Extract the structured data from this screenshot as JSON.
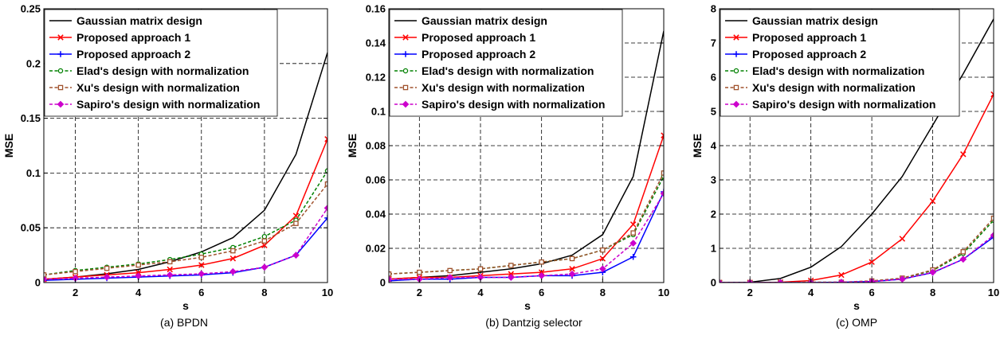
{
  "legend_entries": [
    "Gaussian matrix design",
    "Proposed approach 1",
    "Proposed approach 2",
    "Elad's design with normalization",
    "Xu's design with normalization",
    "Sapiro's design with normalization"
  ],
  "series_styles": [
    {
      "color": "#000000",
      "marker": "none",
      "dash": "solid"
    },
    {
      "color": "#ff0000",
      "marker": "x",
      "dash": "solid"
    },
    {
      "color": "#0000ff",
      "marker": "plus",
      "dash": "solid"
    },
    {
      "color": "#008000",
      "marker": "circle",
      "dash": "dashed"
    },
    {
      "color": "#a0522d",
      "marker": "square",
      "dash": "dashed"
    },
    {
      "color": "#cc00cc",
      "marker": "diamond",
      "dash": "dashed"
    }
  ],
  "chart_data": [
    {
      "type": "line",
      "caption": "(a) BPDN",
      "xlabel": "s",
      "ylabel": "MSE",
      "xlim": [
        1,
        10
      ],
      "ylim": [
        0,
        0.25
      ],
      "xticks": [
        2,
        4,
        6,
        8,
        10
      ],
      "yticks": [
        0,
        0.05,
        0.1,
        0.15,
        0.2,
        0.25
      ],
      "ytick_labels": [
        "0",
        "0.05",
        "0.1",
        "0.15",
        "0.2",
        "0.25"
      ],
      "grid": true,
      "legend_position": "top-left",
      "x": [
        1,
        2,
        3,
        4,
        5,
        6,
        7,
        8,
        9,
        10
      ],
      "series": [
        {
          "name": "Gaussian matrix design",
          "values": [
            0.003,
            0.005,
            0.008,
            0.012,
            0.019,
            0.028,
            0.041,
            0.066,
            0.117,
            0.21
          ]
        },
        {
          "name": "Proposed approach 1",
          "values": [
            0.003,
            0.005,
            0.007,
            0.009,
            0.012,
            0.016,
            0.022,
            0.034,
            0.061,
            0.131
          ]
        },
        {
          "name": "Proposed approach 2",
          "values": [
            0.002,
            0.003,
            0.004,
            0.005,
            0.006,
            0.007,
            0.009,
            0.014,
            0.025,
            0.059
          ]
        },
        {
          "name": "Elad's design with normalization",
          "values": [
            0.007,
            0.011,
            0.014,
            0.017,
            0.021,
            0.026,
            0.032,
            0.042,
            0.057,
            0.102
          ]
        },
        {
          "name": "Xu's design with normalization",
          "values": [
            0.007,
            0.01,
            0.013,
            0.016,
            0.019,
            0.023,
            0.029,
            0.038,
            0.054,
            0.09
          ]
        },
        {
          "name": "Sapiro's design with normalization",
          "values": [
            0.003,
            0.004,
            0.005,
            0.006,
            0.007,
            0.008,
            0.01,
            0.014,
            0.025,
            0.068
          ]
        }
      ]
    },
    {
      "type": "line",
      "caption": "(b) Dantzig selector",
      "xlabel": "s",
      "ylabel": "MSE",
      "xlim": [
        1,
        10
      ],
      "ylim": [
        0,
        0.16
      ],
      "xticks": [
        2,
        4,
        6,
        8,
        10
      ],
      "yticks": [
        0,
        0.02,
        0.04,
        0.06,
        0.08,
        0.1,
        0.12,
        0.14,
        0.16
      ],
      "ytick_labels": [
        "0",
        "0.02",
        "0.04",
        "0.06",
        "0.08",
        "0.1",
        "0.12",
        "0.14",
        "0.16"
      ],
      "grid": true,
      "legend_position": "top-left",
      "x": [
        1,
        2,
        3,
        4,
        5,
        6,
        7,
        8,
        9,
        10
      ],
      "series": [
        {
          "name": "Gaussian matrix design",
          "values": [
            0.002,
            0.003,
            0.004,
            0.006,
            0.008,
            0.011,
            0.016,
            0.028,
            0.062,
            0.147
          ]
        },
        {
          "name": "Proposed approach 1",
          "values": [
            0.002,
            0.003,
            0.003,
            0.004,
            0.005,
            0.006,
            0.008,
            0.014,
            0.034,
            0.086
          ]
        },
        {
          "name": "Proposed approach 2",
          "values": [
            0.001,
            0.002,
            0.002,
            0.003,
            0.003,
            0.004,
            0.004,
            0.006,
            0.015,
            0.053
          ]
        },
        {
          "name": "Elad's design with normalization",
          "values": [
            0.005,
            0.006,
            0.007,
            0.008,
            0.01,
            0.012,
            0.014,
            0.019,
            0.028,
            0.062
          ]
        },
        {
          "name": "Xu's design with normalization",
          "values": [
            0.005,
            0.006,
            0.007,
            0.008,
            0.01,
            0.012,
            0.014,
            0.019,
            0.029,
            0.064
          ]
        },
        {
          "name": "Sapiro's design with normalization",
          "values": [
            0.002,
            0.002,
            0.003,
            0.003,
            0.003,
            0.004,
            0.005,
            0.008,
            0.023,
            0.052
          ]
        }
      ]
    },
    {
      "type": "line",
      "caption": "(c) OMP",
      "xlabel": "s",
      "ylabel": "MSE",
      "xlim": [
        1,
        10
      ],
      "ylim": [
        0,
        8
      ],
      "xticks": [
        2,
        4,
        6,
        8,
        10
      ],
      "yticks": [
        0,
        1,
        2,
        3,
        4,
        5,
        6,
        7,
        8
      ],
      "ytick_labels": [
        "0",
        "1",
        "2",
        "3",
        "4",
        "5",
        "6",
        "7",
        "8"
      ],
      "grid": true,
      "legend_position": "top-left",
      "x": [
        1,
        2,
        3,
        4,
        5,
        6,
        7,
        8,
        9,
        10
      ],
      "series": [
        {
          "name": "Gaussian matrix design",
          "values": [
            0,
            0.01,
            0.12,
            0.45,
            1.05,
            2.0,
            3.1,
            4.6,
            6.1,
            7.7
          ]
        },
        {
          "name": "Proposed approach 1",
          "values": [
            0,
            0,
            0.01,
            0.06,
            0.22,
            0.6,
            1.28,
            2.38,
            3.75,
            5.5
          ]
        },
        {
          "name": "Proposed approach 2",
          "values": [
            0,
            0,
            0,
            0,
            0.01,
            0.03,
            0.1,
            0.29,
            0.68,
            1.33
          ]
        },
        {
          "name": "Elad's design with normalization",
          "values": [
            0,
            0,
            0,
            0.01,
            0.01,
            0.04,
            0.12,
            0.35,
            0.85,
            1.82
          ]
        },
        {
          "name": "Xu's design with normalization",
          "values": [
            0,
            0,
            0,
            0.01,
            0.01,
            0.05,
            0.13,
            0.37,
            0.9,
            1.88
          ]
        },
        {
          "name": "Sapiro's design with normalization",
          "values": [
            0,
            0,
            0,
            0,
            0.01,
            0.03,
            0.1,
            0.3,
            0.68,
            1.38
          ]
        }
      ]
    }
  ]
}
